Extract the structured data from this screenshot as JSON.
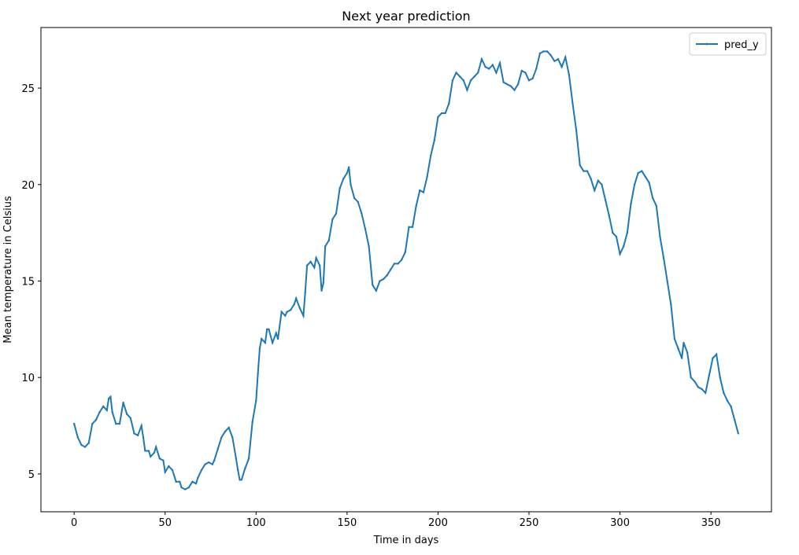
{
  "chart_data": {
    "type": "line",
    "title": "Next year prediction",
    "x_label": "Time in days",
    "y_label": "Mean temperature in Celsius",
    "x": [
      0,
      2,
      4,
      6,
      8,
      10,
      12,
      14,
      16,
      18,
      19,
      20,
      21,
      23,
      25,
      27,
      29,
      31,
      33,
      35,
      37,
      38,
      39,
      41,
      42,
      44,
      45,
      47,
      49,
      50,
      52,
      54,
      56,
      58,
      59,
      61,
      63,
      65,
      67,
      68,
      70,
      72,
      74,
      76,
      77,
      79,
      81,
      83,
      85,
      87,
      89,
      90,
      91,
      92,
      94,
      96,
      98,
      100,
      101,
      102,
      103,
      105,
      106,
      107,
      109,
      111,
      112,
      114,
      116,
      117,
      119,
      121,
      122,
      124,
      126,
      127,
      128,
      130,
      132,
      133,
      135,
      136,
      137,
      138,
      140,
      142,
      144,
      146,
      148,
      150,
      151,
      152,
      154,
      156,
      158,
      160,
      162,
      164,
      166,
      168,
      170,
      172,
      174,
      176,
      178,
      180,
      182,
      184,
      186,
      188,
      190,
      192,
      194,
      196,
      198,
      200,
      202,
      204,
      206,
      208,
      210,
      212,
      214,
      216,
      218,
      220,
      222,
      224,
      226,
      228,
      230,
      232,
      234,
      236,
      238,
      240,
      242,
      244,
      246,
      248,
      250,
      252,
      254,
      256,
      258,
      260,
      262,
      264,
      266,
      268,
      270,
      272,
      274,
      276,
      278,
      280,
      282,
      284,
      286,
      288,
      290,
      292,
      294,
      296,
      298,
      300,
      302,
      304,
      306,
      308,
      310,
      312,
      314,
      316,
      318,
      320,
      322,
      324,
      326,
      328,
      330,
      332,
      334,
      335,
      337,
      339,
      341,
      343,
      345,
      347,
      349,
      351,
      353,
      355,
      357,
      359,
      361,
      363,
      365
    ],
    "series": [
      {
        "name": "pred_y",
        "color": "#1f77b4",
        "values": [
          7.6,
          6.9,
          6.5,
          6.4,
          6.6,
          7.6,
          7.8,
          8.2,
          8.5,
          8.3,
          8.9,
          9.0,
          8.2,
          7.6,
          7.6,
          8.7,
          8.1,
          7.9,
          7.1,
          7.0,
          7.5,
          6.9,
          6.2,
          6.2,
          5.9,
          6.1,
          6.4,
          5.8,
          5.7,
          5.1,
          5.4,
          5.2,
          4.6,
          4.6,
          4.3,
          4.2,
          4.3,
          4.6,
          4.5,
          4.8,
          5.2,
          5.5,
          5.6,
          5.5,
          5.7,
          6.3,
          6.9,
          7.2,
          7.4,
          6.9,
          5.8,
          5.2,
          4.7,
          4.7,
          5.3,
          5.8,
          7.7,
          8.8,
          10.2,
          11.5,
          12.0,
          11.8,
          12.5,
          12.5,
          11.8,
          12.3,
          12.0,
          13.4,
          13.2,
          13.4,
          13.5,
          13.8,
          14.1,
          13.6,
          13.2,
          14.4,
          15.8,
          16.0,
          15.7,
          16.2,
          15.8,
          14.5,
          14.9,
          16.8,
          17.1,
          18.2,
          18.5,
          19.8,
          20.3,
          20.6,
          20.9,
          20.0,
          19.3,
          19.1,
          18.5,
          17.7,
          16.8,
          14.8,
          14.5,
          15.0,
          15.1,
          15.3,
          15.6,
          15.9,
          15.9,
          16.1,
          16.5,
          17.8,
          17.8,
          18.9,
          19.7,
          19.6,
          20.4,
          21.5,
          22.3,
          23.5,
          23.7,
          23.7,
          24.2,
          25.4,
          25.8,
          25.6,
          25.4,
          24.9,
          25.4,
          25.6,
          25.8,
          26.5,
          26.1,
          26.0,
          26.2,
          25.8,
          26.3,
          25.3,
          25.2,
          25.1,
          24.9,
          25.2,
          25.9,
          25.8,
          25.4,
          25.5,
          26.0,
          26.8,
          26.9,
          26.9,
          26.7,
          26.4,
          26.5,
          26.1,
          26.6,
          25.7,
          24.2,
          22.8,
          21.0,
          20.7,
          20.7,
          20.3,
          19.7,
          20.2,
          20.0,
          19.2,
          18.4,
          17.5,
          17.3,
          16.4,
          16.8,
          17.5,
          19.0,
          20.0,
          20.6,
          20.7,
          20.4,
          20.1,
          19.3,
          18.9,
          17.3,
          16.2,
          15.0,
          13.8,
          12.0,
          11.5,
          11.0,
          11.8,
          11.3,
          10.0,
          9.8,
          9.5,
          9.4,
          9.2,
          10.1,
          11.0,
          11.2,
          10.0,
          9.2,
          8.8,
          8.5,
          7.8,
          7.1
        ]
      }
    ],
    "xlim": [
      -18.25,
      383.25
    ],
    "ylim": [
      3.04,
      28.14
    ],
    "xticks": [
      0,
      50,
      100,
      150,
      200,
      250,
      300,
      350
    ],
    "yticks": [
      5,
      10,
      15,
      20,
      25
    ],
    "legend": "upper right"
  }
}
